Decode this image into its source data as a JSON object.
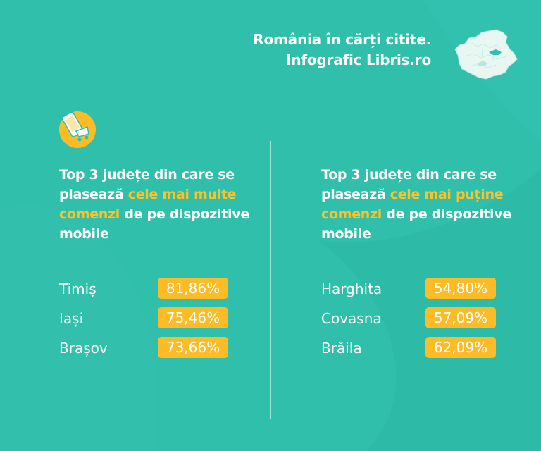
{
  "colors": {
    "background": "#2fbfab",
    "highlight": "#fdc228",
    "badge": "#fdbb26",
    "text": "#ffffff"
  },
  "header": {
    "line1": "România în cărți citite.",
    "line2": "Infografic Libris.ro",
    "map_icon": "romania-map-icon"
  },
  "icon": "mobile-phone-shopping-icon",
  "left": {
    "heading_part1": "Top 3 județe din care se plasează ",
    "heading_highlight": "cele mai multe comenzi",
    "heading_part2": " de pe dispozitive mobile",
    "rows": [
      {
        "county": "Timiș",
        "value": "81,86%"
      },
      {
        "county": "Iași",
        "value": "75,46%"
      },
      {
        "county": "Brașov",
        "value": "73,66%"
      }
    ]
  },
  "right": {
    "heading_part1": "Top 3 județe din care se plasează ",
    "heading_highlight": "cele mai puține comenzi",
    "heading_part2": " de pe dispozitive mobile",
    "rows": [
      {
        "county": "Harghita",
        "value": "54,80%"
      },
      {
        "county": "Covasna",
        "value": "57,09%"
      },
      {
        "county": "Brăila",
        "value": "62,09%"
      }
    ]
  }
}
